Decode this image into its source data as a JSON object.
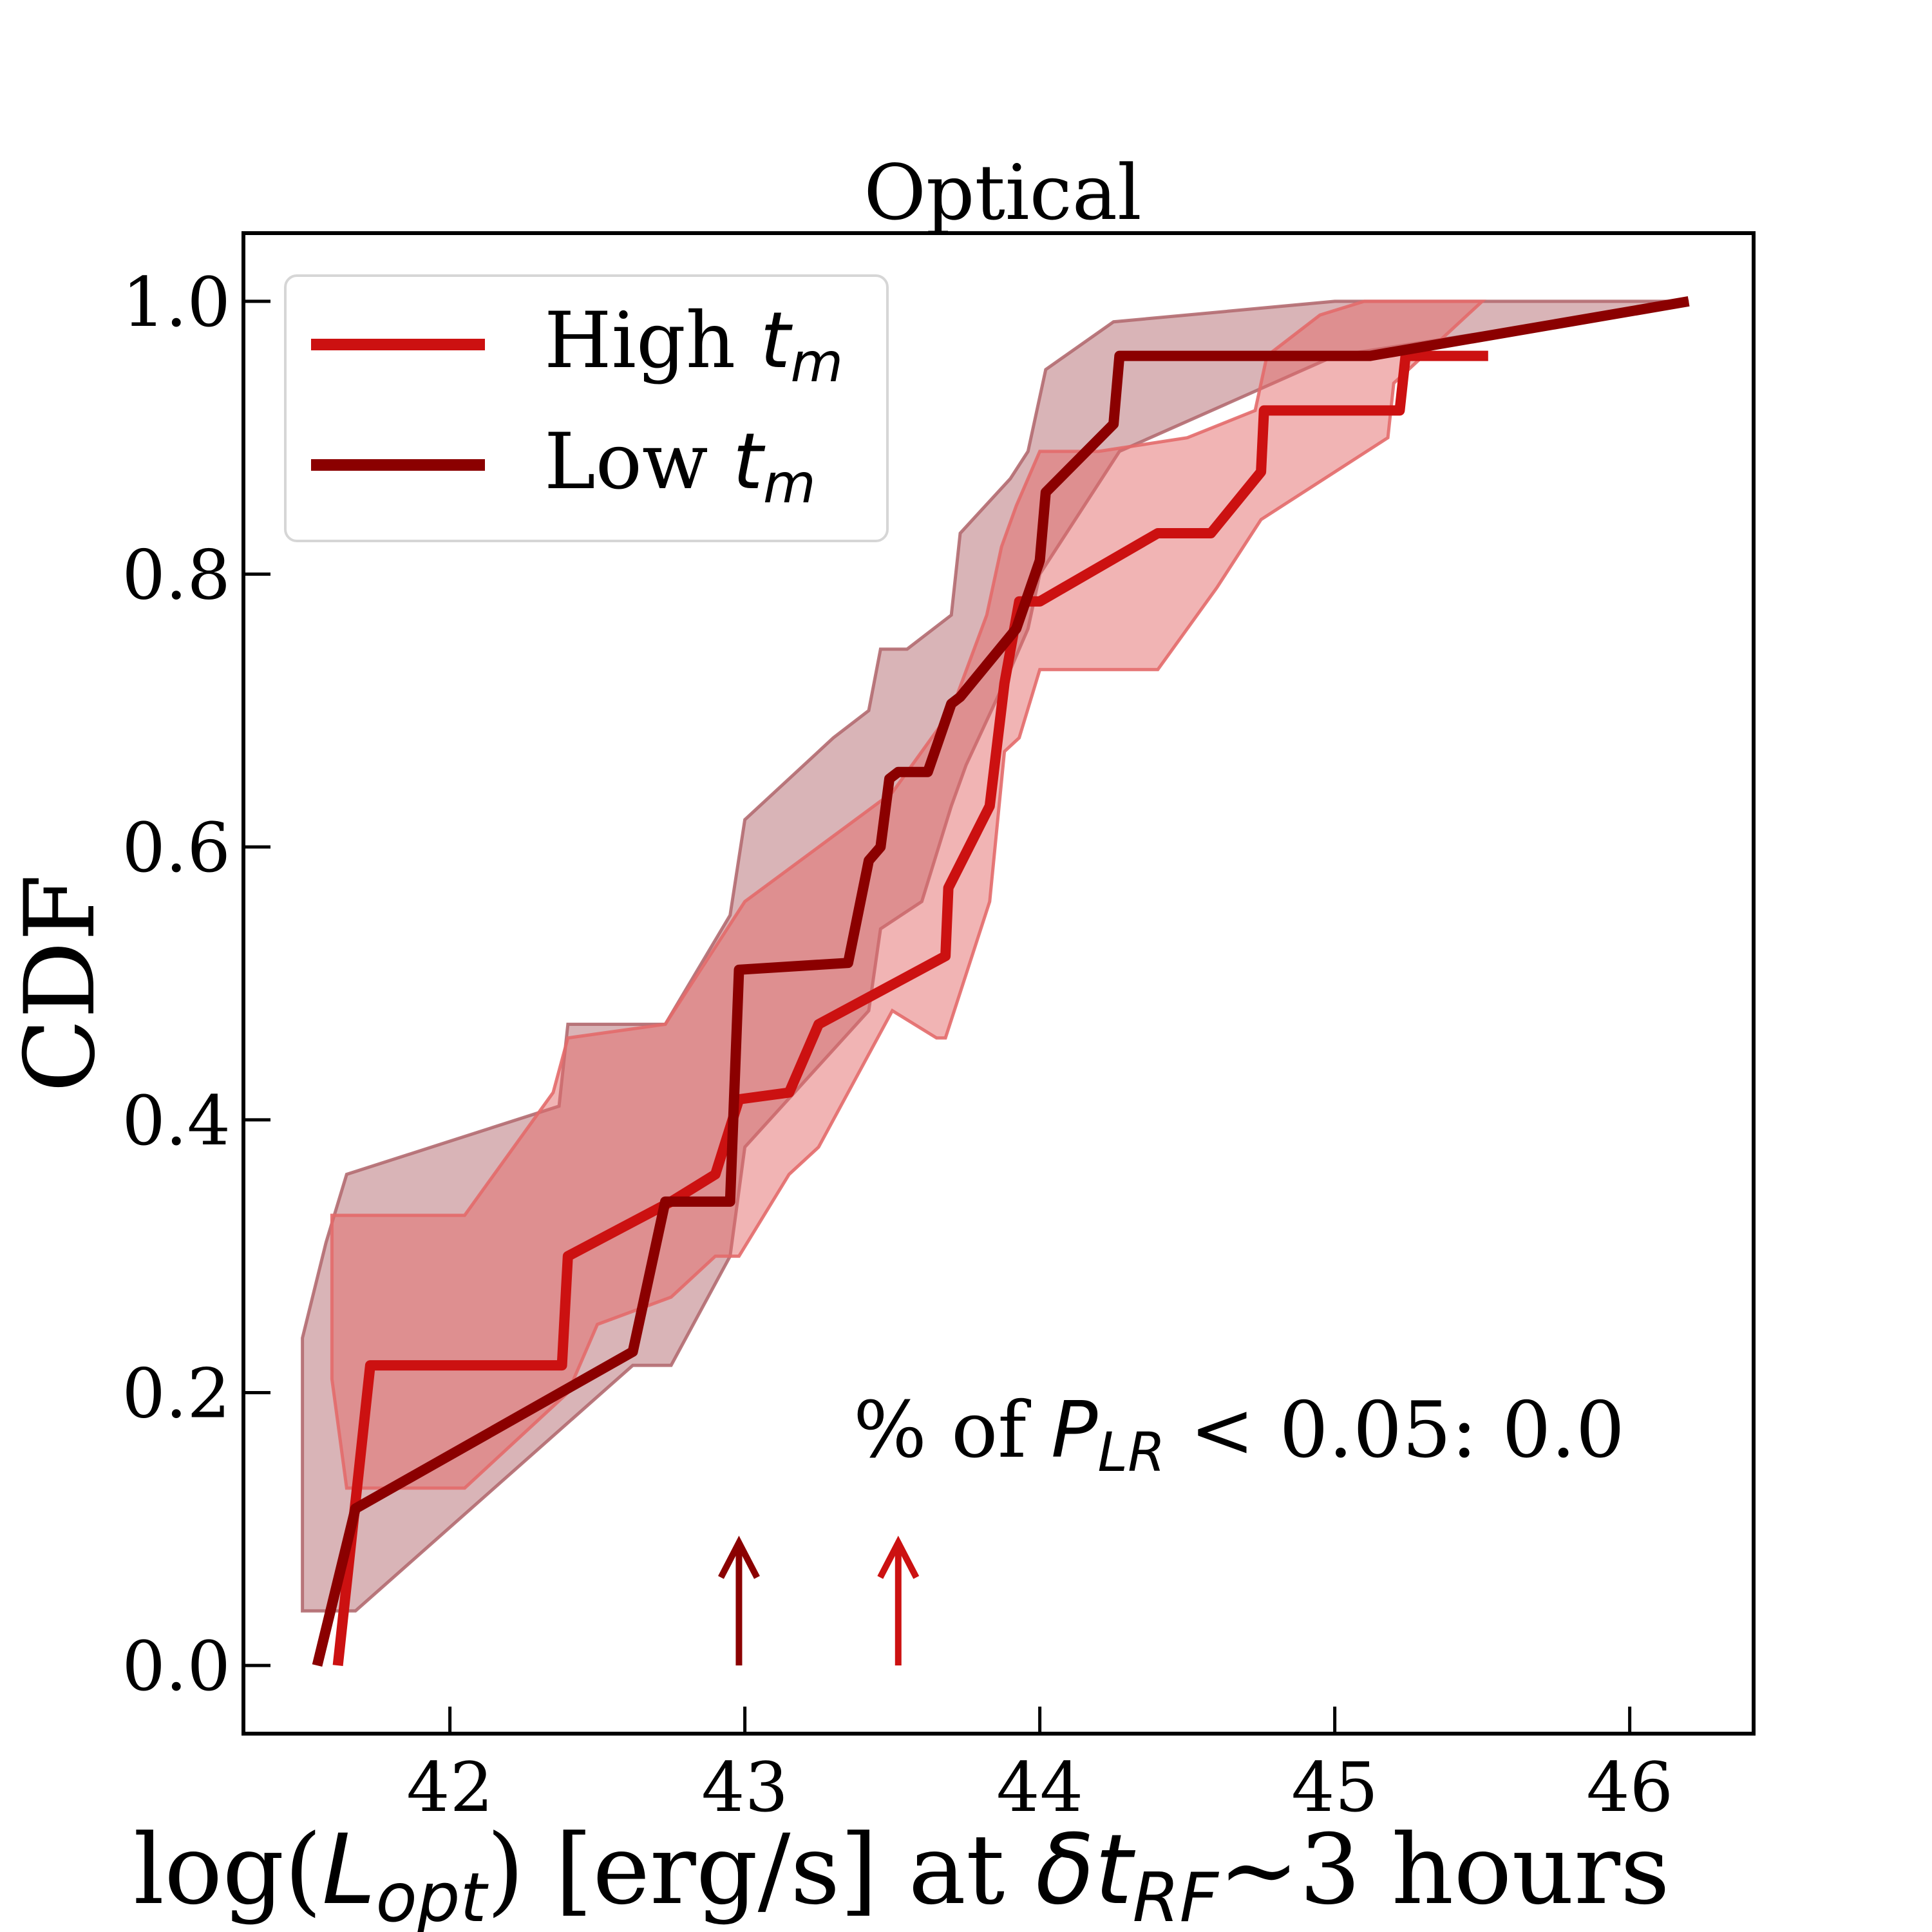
{
  "chart_data": {
    "type": "line",
    "subtype": "step-cdf-with-confidence-bands",
    "title": "Optical",
    "xlabel": "log(L_opt) [erg/s] at δt_RF~3 hours",
    "xlabel_parts": {
      "prefix": "log(",
      "sym": "L",
      "sub": "opt",
      "mid": ") [erg/s] at ",
      "delta": "δ",
      "t": "t",
      "t_sub": "RF",
      "suffix": "~3 hours"
    },
    "ylabel": "CDF",
    "xlim": [
      41.3,
      46.42
    ],
    "ylim": [
      -0.05,
      1.05
    ],
    "xticks": [
      42,
      43,
      44,
      45,
      46
    ],
    "yticks": [
      0.0,
      0.2,
      0.4,
      0.6,
      0.8,
      1.0
    ],
    "xtick_labels": [
      "42",
      "43",
      "44",
      "45",
      "46"
    ],
    "ytick_labels": [
      "0.0",
      "0.2",
      "0.4",
      "0.6",
      "0.8",
      "1.0"
    ],
    "legend": {
      "placement": "upper-left",
      "entries": [
        {
          "label": "High ",
          "sym": "t",
          "sub": "m",
          "series": 0
        },
        {
          "label": "Low ",
          "sym": "t",
          "sub": "m",
          "series": 1
        }
      ]
    },
    "annotation": {
      "prefix": "% of ",
      "sym": "P",
      "sub": "LR",
      "suffix": " < 0.05: 0.0",
      "position": "lower-right"
    },
    "series": [
      {
        "name": "High t_m",
        "color": "#cc1111",
        "band_color": "#e36a6a",
        "line": [
          [
            41.62,
            0.0
          ],
          [
            41.73,
            0.22
          ],
          [
            42.38,
            0.22
          ],
          [
            42.4,
            0.3
          ],
          [
            42.75,
            0.34
          ],
          [
            42.9,
            0.36
          ],
          [
            42.98,
            0.415
          ],
          [
            43.15,
            0.42
          ],
          [
            43.25,
            0.47
          ],
          [
            43.68,
            0.52
          ],
          [
            43.69,
            0.57
          ],
          [
            43.83,
            0.63
          ],
          [
            43.88,
            0.72
          ],
          [
            43.93,
            0.78
          ],
          [
            44.0,
            0.78
          ],
          [
            44.4,
            0.83
          ],
          [
            44.58,
            0.83
          ],
          [
            44.75,
            0.875
          ],
          [
            44.76,
            0.92
          ],
          [
            45.22,
            0.92
          ],
          [
            45.24,
            0.96
          ],
          [
            45.52,
            0.96
          ]
        ],
        "band_upper": [
          [
            41.6,
            0.33
          ],
          [
            41.65,
            0.33
          ],
          [
            41.73,
            0.33
          ],
          [
            42.05,
            0.33
          ],
          [
            42.35,
            0.42
          ],
          [
            42.4,
            0.46
          ],
          [
            42.73,
            0.47
          ],
          [
            43.0,
            0.56
          ],
          [
            43.25,
            0.6
          ],
          [
            43.5,
            0.64
          ],
          [
            43.7,
            0.7
          ],
          [
            43.82,
            0.77
          ],
          [
            43.87,
            0.82
          ],
          [
            43.92,
            0.85
          ],
          [
            44.0,
            0.89
          ],
          [
            44.2,
            0.89
          ],
          [
            44.5,
            0.9
          ],
          [
            44.73,
            0.92
          ],
          [
            44.77,
            0.96
          ],
          [
            44.95,
            0.99
          ],
          [
            45.1,
            1.0
          ],
          [
            45.5,
            1.0
          ]
        ],
        "band_lower": [
          [
            45.5,
            1.0
          ],
          [
            45.2,
            0.94
          ],
          [
            45.18,
            0.9
          ],
          [
            44.75,
            0.84
          ],
          [
            44.6,
            0.79
          ],
          [
            44.4,
            0.73
          ],
          [
            44.0,
            0.73
          ],
          [
            43.93,
            0.68
          ],
          [
            43.88,
            0.67
          ],
          [
            43.83,
            0.56
          ],
          [
            43.68,
            0.46
          ],
          [
            43.65,
            0.46
          ],
          [
            43.5,
            0.48
          ],
          [
            43.25,
            0.38
          ],
          [
            43.15,
            0.36
          ],
          [
            42.98,
            0.3
          ],
          [
            42.9,
            0.3
          ],
          [
            42.75,
            0.27
          ],
          [
            42.5,
            0.25
          ],
          [
            42.4,
            0.2
          ],
          [
            42.05,
            0.13
          ],
          [
            41.73,
            0.13
          ],
          [
            41.65,
            0.13
          ],
          [
            41.6,
            0.21
          ]
        ]
      },
      {
        "name": "Low t_m",
        "color": "#8b0000",
        "band_color": "#b36a70",
        "line": [
          [
            41.55,
            0.0
          ],
          [
            41.68,
            0.115
          ],
          [
            42.62,
            0.23
          ],
          [
            42.73,
            0.34
          ],
          [
            42.95,
            0.34
          ],
          [
            42.98,
            0.51
          ],
          [
            43.35,
            0.515
          ],
          [
            43.42,
            0.59
          ],
          [
            43.46,
            0.6
          ],
          [
            43.49,
            0.65
          ],
          [
            43.52,
            0.655
          ],
          [
            43.62,
            0.655
          ],
          [
            43.7,
            0.705
          ],
          [
            43.73,
            0.71
          ],
          [
            43.92,
            0.76
          ],
          [
            44.0,
            0.81
          ],
          [
            44.02,
            0.86
          ],
          [
            44.25,
            0.91
          ],
          [
            44.27,
            0.96
          ],
          [
            45.12,
            0.96
          ],
          [
            46.2,
            1.0
          ]
        ],
        "band_upper": [
          [
            41.5,
            0.24
          ],
          [
            41.58,
            0.31
          ],
          [
            41.65,
            0.36
          ],
          [
            42.37,
            0.41
          ],
          [
            42.4,
            0.47
          ],
          [
            42.73,
            0.47
          ],
          [
            42.95,
            0.55
          ],
          [
            43.0,
            0.62
          ],
          [
            43.3,
            0.68
          ],
          [
            43.42,
            0.7
          ],
          [
            43.46,
            0.745
          ],
          [
            43.55,
            0.745
          ],
          [
            43.7,
            0.77
          ],
          [
            43.73,
            0.83
          ],
          [
            43.9,
            0.87
          ],
          [
            43.96,
            0.89
          ],
          [
            44.02,
            0.95
          ],
          [
            44.25,
            0.985
          ],
          [
            44.5,
            0.99
          ],
          [
            45.0,
            1.0
          ],
          [
            46.2,
            1.0
          ]
        ],
        "band_lower": [
          [
            46.2,
            1.0
          ],
          [
            45.0,
            0.96
          ],
          [
            44.27,
            0.89
          ],
          [
            44.0,
            0.8
          ],
          [
            43.96,
            0.76
          ],
          [
            43.9,
            0.73
          ],
          [
            43.75,
            0.66
          ],
          [
            43.7,
            0.63
          ],
          [
            43.6,
            0.56
          ],
          [
            43.46,
            0.54
          ],
          [
            43.42,
            0.48
          ],
          [
            43.0,
            0.38
          ],
          [
            42.95,
            0.3
          ],
          [
            42.75,
            0.22
          ],
          [
            42.62,
            0.22
          ],
          [
            41.68,
            0.04
          ],
          [
            41.55,
            0.04
          ],
          [
            41.5,
            0.04
          ]
        ]
      }
    ],
    "arrows": [
      {
        "x": 42.98,
        "series": 1
      },
      {
        "x": 43.52,
        "series": 0
      }
    ]
  }
}
